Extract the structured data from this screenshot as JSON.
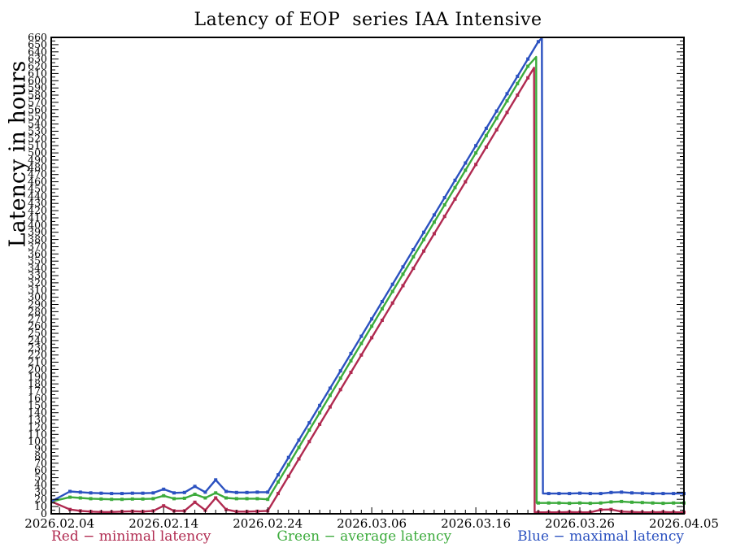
{
  "page": {
    "background": "#ffffff"
  },
  "chart_data": {
    "type": "line",
    "title": "Latency of EOP  series IAA Intensive",
    "ylabel": "Latency in hours",
    "xlabel": "",
    "grid": false,
    "legend_position": "bottom",
    "x_axis": {
      "range_days": [
        -0.8,
        60
      ],
      "minor_tick_every_days": 1,
      "tick_labels": [
        {
          "day": 0,
          "label": "2026.02.04"
        },
        {
          "day": 10,
          "label": "2026.02.14"
        },
        {
          "day": 20,
          "label": "2026.02.24"
        },
        {
          "day": 30,
          "label": "2026.03.06"
        },
        {
          "day": 40,
          "label": "2026.03.16"
        },
        {
          "day": 50,
          "label": "2026.03.26"
        },
        {
          "day": 60,
          "label": "2026.04.05"
        }
      ]
    },
    "y_axis": {
      "range": [
        0,
        660
      ],
      "label_every": 10,
      "minor_tick_every": 5,
      "tick_values": [
        0,
        10,
        20,
        30,
        40,
        50,
        60,
        70,
        80,
        90,
        100,
        110,
        120,
        130,
        140,
        150,
        160,
        170,
        180,
        190,
        200,
        210,
        220,
        230,
        240,
        250,
        260,
        270,
        280,
        290,
        300,
        310,
        320,
        330,
        340,
        350,
        360,
        370,
        380,
        390,
        400,
        410,
        420,
        430,
        440,
        450,
        460,
        470,
        480,
        490,
        500,
        510,
        520,
        530,
        540,
        550,
        560,
        570,
        580,
        590,
        600,
        610,
        620,
        630,
        640,
        650,
        660
      ]
    },
    "series": [
      {
        "name": "minimal latency",
        "color": "#b02a50",
        "points": [
          [
            -0.8,
            17
          ],
          [
            1,
            6
          ],
          [
            2,
            4
          ],
          [
            3,
            3
          ],
          [
            4,
            2.5
          ],
          [
            5,
            2.5
          ],
          [
            6,
            3
          ],
          [
            7,
            3.5
          ],
          [
            8,
            3
          ],
          [
            9,
            4
          ],
          [
            10,
            11
          ],
          [
            11,
            4
          ],
          [
            12,
            4
          ],
          [
            13,
            16
          ],
          [
            14,
            5
          ],
          [
            15,
            22
          ],
          [
            16,
            6
          ],
          [
            17,
            3
          ],
          [
            18,
            3
          ],
          [
            19,
            3.5
          ],
          [
            20,
            4
          ],
          [
            21,
            28
          ],
          [
            22,
            52
          ],
          [
            23,
            76
          ],
          [
            24,
            100
          ],
          [
            25,
            124
          ],
          [
            26,
            148
          ],
          [
            27,
            172
          ],
          [
            28,
            196
          ],
          [
            29,
            220
          ],
          [
            30,
            244
          ],
          [
            31,
            268
          ],
          [
            32,
            292
          ],
          [
            33,
            316
          ],
          [
            34,
            340
          ],
          [
            35,
            364
          ],
          [
            36,
            388
          ],
          [
            37,
            412
          ],
          [
            38,
            436
          ],
          [
            39,
            460
          ],
          [
            40,
            484
          ],
          [
            41,
            508
          ],
          [
            42,
            532
          ],
          [
            43,
            556
          ],
          [
            44,
            580
          ],
          [
            45,
            604
          ],
          [
            45.6,
            618
          ],
          [
            45.65,
            2
          ],
          [
            46,
            2
          ],
          [
            47,
            2
          ],
          [
            48,
            2
          ],
          [
            49,
            2.5
          ],
          [
            50,
            2
          ],
          [
            51,
            2
          ],
          [
            52,
            5.5
          ],
          [
            53,
            6
          ],
          [
            54,
            3
          ],
          [
            55,
            2.5
          ],
          [
            56,
            2
          ],
          [
            57,
            2
          ],
          [
            58,
            2.5
          ],
          [
            59,
            2
          ],
          [
            60,
            2
          ]
        ]
      },
      {
        "name": "average latency",
        "color": "#3cab3c",
        "points": [
          [
            -0.8,
            17
          ],
          [
            1,
            23
          ],
          [
            2,
            22
          ],
          [
            3,
            21
          ],
          [
            4,
            20.5
          ],
          [
            5,
            20
          ],
          [
            6,
            20
          ],
          [
            7,
            20.5
          ],
          [
            8,
            20.5
          ],
          [
            9,
            21
          ],
          [
            10,
            25
          ],
          [
            11,
            21
          ],
          [
            12,
            21.5
          ],
          [
            13,
            27
          ],
          [
            14,
            22
          ],
          [
            15,
            29
          ],
          [
            16,
            22
          ],
          [
            17,
            21
          ],
          [
            18,
            21
          ],
          [
            19,
            21
          ],
          [
            20,
            20
          ],
          [
            21,
            44
          ],
          [
            22,
            68
          ],
          [
            23,
            92
          ],
          [
            24,
            116
          ],
          [
            25,
            140
          ],
          [
            26,
            164
          ],
          [
            27,
            188
          ],
          [
            28,
            212
          ],
          [
            29,
            236
          ],
          [
            30,
            260
          ],
          [
            31,
            284
          ],
          [
            32,
            308
          ],
          [
            33,
            332
          ],
          [
            34,
            356
          ],
          [
            35,
            380
          ],
          [
            36,
            404
          ],
          [
            37,
            428
          ],
          [
            38,
            452
          ],
          [
            39,
            476
          ],
          [
            40,
            500
          ],
          [
            41,
            524
          ],
          [
            42,
            548
          ],
          [
            43,
            572
          ],
          [
            44,
            596
          ],
          [
            45,
            620
          ],
          [
            45.8,
            633
          ],
          [
            45.85,
            15
          ],
          [
            46,
            15
          ],
          [
            47,
            15
          ],
          [
            48,
            15
          ],
          [
            49,
            14.5
          ],
          [
            50,
            15
          ],
          [
            51,
            14.5
          ],
          [
            52,
            15
          ],
          [
            53,
            16.5
          ],
          [
            54,
            17
          ],
          [
            55,
            16
          ],
          [
            56,
            15.5
          ],
          [
            57,
            15
          ],
          [
            58,
            14.5
          ],
          [
            59,
            15
          ],
          [
            60,
            15
          ]
        ]
      },
      {
        "name": "maximal latency",
        "color": "#2b51c0",
        "points": [
          [
            -0.8,
            17
          ],
          [
            1,
            31
          ],
          [
            2,
            30
          ],
          [
            3,
            29
          ],
          [
            4,
            28.5
          ],
          [
            5,
            28
          ],
          [
            6,
            28
          ],
          [
            7,
            28.5
          ],
          [
            8,
            28.5
          ],
          [
            9,
            29
          ],
          [
            10,
            34
          ],
          [
            11,
            29
          ],
          [
            12,
            29.5
          ],
          [
            13,
            38
          ],
          [
            14,
            30
          ],
          [
            15,
            47
          ],
          [
            16,
            31
          ],
          [
            17,
            29.5
          ],
          [
            18,
            29.5
          ],
          [
            19,
            30
          ],
          [
            20,
            30
          ],
          [
            21,
            54
          ],
          [
            22,
            78
          ],
          [
            23,
            102
          ],
          [
            24,
            126
          ],
          [
            25,
            150
          ],
          [
            26,
            174
          ],
          [
            27,
            198
          ],
          [
            28,
            222
          ],
          [
            29,
            246
          ],
          [
            30,
            270
          ],
          [
            31,
            294
          ],
          [
            32,
            318
          ],
          [
            33,
            342
          ],
          [
            34,
            366
          ],
          [
            35,
            390
          ],
          [
            36,
            414
          ],
          [
            37,
            438
          ],
          [
            38,
            462
          ],
          [
            39,
            486
          ],
          [
            40,
            510
          ],
          [
            41,
            534
          ],
          [
            42,
            558
          ],
          [
            43,
            582
          ],
          [
            44,
            606
          ],
          [
            45,
            630
          ],
          [
            46,
            654
          ],
          [
            46.35,
            659
          ],
          [
            46.45,
            28
          ],
          [
            47,
            28
          ],
          [
            48,
            28
          ],
          [
            49,
            28
          ],
          [
            50,
            28.5
          ],
          [
            51,
            28
          ],
          [
            52,
            28
          ],
          [
            53,
            29.5
          ],
          [
            54,
            30
          ],
          [
            55,
            29
          ],
          [
            56,
            28.5
          ],
          [
            57,
            28
          ],
          [
            58,
            28
          ],
          [
            59,
            28
          ],
          [
            60,
            28
          ]
        ]
      }
    ],
    "legend": [
      {
        "label": "Red − minimal latency",
        "color": "#b02a50"
      },
      {
        "label": "Green − average latency",
        "color": "#3cab3c"
      },
      {
        "label": "Blue − maximal latency",
        "color": "#2b51c0"
      }
    ]
  }
}
